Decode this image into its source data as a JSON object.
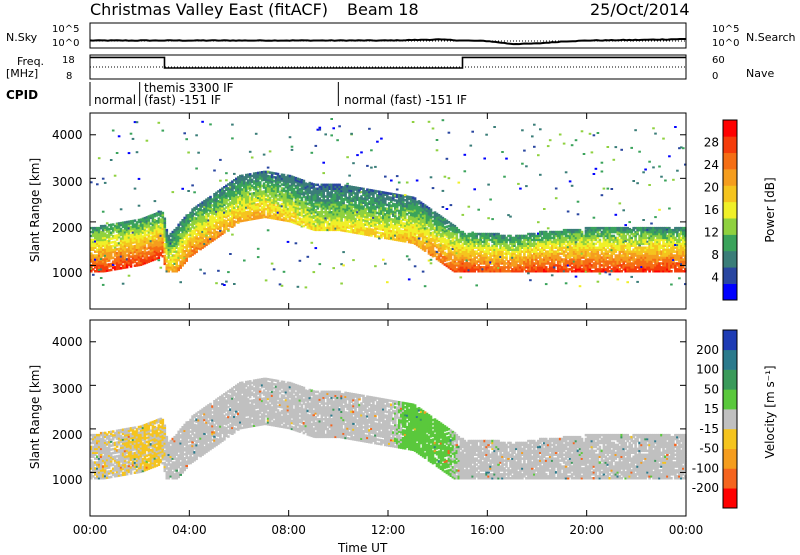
{
  "header": {
    "radar": "Christmas Valley East (fitACF)",
    "beam": "Beam 18",
    "date": "25/Oct/2014"
  },
  "noise_panel": {
    "left_label": "N.Sky",
    "left_ticks": [
      "10^5",
      "10^0"
    ],
    "right_label": "N.Search",
    "right_ticks": [
      "10^5",
      "10^0"
    ]
  },
  "freq_panel": {
    "left_label_line1": "Freq.",
    "left_label_line2": "[MHz]",
    "left_ticks": [
      "18",
      "8"
    ],
    "right_label": "Nave",
    "right_ticks": [
      "60",
      "0"
    ]
  },
  "cpid": {
    "label": "CPID",
    "segments": [
      "normal",
      "themis 3300 IF",
      "(fast) -151 IF",
      "normal (fast) -151 IF"
    ]
  },
  "power_panel": {
    "ylabel": "Slant Range [km]",
    "yticks": [
      "4000",
      "3000",
      "2000",
      "1000"
    ],
    "colorbar_label": "Power [dB]",
    "colorbar_ticks": [
      "28",
      "24",
      "20",
      "16",
      "12",
      "8",
      "4"
    ],
    "colors": [
      "#0000ff",
      "#2946a0",
      "#3a7d78",
      "#3aa35b",
      "#8fd13f",
      "#f0f028",
      "#f5c41e",
      "#f59d1e",
      "#f56e14",
      "#f53c0a",
      "#ff0000"
    ]
  },
  "velocity_panel": {
    "ylabel": "Slant Range [km]",
    "yticks": [
      "4000",
      "3000",
      "2000",
      "1000"
    ],
    "colorbar_label": "Velocity [m s⁻¹]",
    "colorbar_ticks": [
      "200",
      "100",
      "50",
      "15",
      "-15",
      "-50",
      "-100",
      "-200"
    ],
    "colors": [
      "#1e3cb4",
      "#2b7a8c",
      "#3a9a5a",
      "#5ac83c",
      "#c0c0c0",
      "#f5c41e",
      "#f59d1e",
      "#f5641e",
      "#ff0000"
    ]
  },
  "time_axis": {
    "label": "Time UT",
    "ticks": [
      "00:00",
      "04:00",
      "08:00",
      "12:00",
      "16:00",
      "20:00",
      "00:00"
    ]
  },
  "chart_data": {
    "type": "heatmap",
    "title": "Christmas Valley East (fitACF) Beam 18 25/Oct/2014",
    "xlabel": "Time UT",
    "ylabel": "Slant Range [km]",
    "xlim": [
      0,
      24
    ],
    "ylim": [
      0,
      4500
    ],
    "panels": [
      {
        "name": "Power",
        "units": "dB",
        "clim": [
          0,
          30
        ],
        "main_echo_band": {
          "time_h": [
            0,
            1,
            2,
            2.9,
            3.1,
            4,
            5,
            6,
            7,
            8,
            9,
            10,
            11,
            12,
            13,
            14,
            15,
            16,
            17,
            18,
            20,
            22,
            24
          ],
          "range_km": [
            1500,
            1600,
            1700,
            1900,
            1300,
            1900,
            2300,
            2700,
            2800,
            2700,
            2500,
            2500,
            2400,
            2300,
            2200,
            1800,
            1400,
            1400,
            1300,
            1400,
            1500,
            1500,
            1500
          ],
          "peak_power_db": [
            28,
            28,
            28,
            28,
            20,
            24,
            22,
            20,
            20,
            18,
            16,
            16,
            18,
            18,
            20,
            24,
            28,
            26,
            26,
            28,
            28,
            28,
            28
          ]
        }
      },
      {
        "name": "Velocity",
        "units": "m s^-1",
        "clim": [
          -250,
          250
        ],
        "dominant_velocity_ms": [
          -10,
          -10,
          -20,
          -20,
          0,
          0,
          0,
          0,
          0,
          0,
          0,
          0,
          0,
          0,
          40,
          40,
          0,
          0,
          0,
          0,
          0,
          0,
          0
        ]
      }
    ],
    "noise": {
      "n_sky_log": [
        1.5,
        1.5,
        1.5,
        1.5,
        1.5,
        1.5,
        1.5,
        1.5,
        1.5,
        1.5,
        1.5,
        1.5,
        1.5,
        1.6,
        1.7,
        1.5,
        1.4,
        0.8,
        0.9,
        1.3,
        1.5,
        1.6,
        1.8
      ],
      "time_h": [
        0,
        1,
        2,
        3,
        4,
        5,
        6,
        7,
        8,
        9,
        10,
        11,
        12,
        13,
        14,
        15,
        16,
        17,
        18,
        19,
        20,
        22,
        24
      ]
    },
    "frequency_mhz": {
      "time_h": [
        0,
        3.0,
        3.0,
        15.0,
        15.0,
        24
      ],
      "values": [
        12.5,
        12.5,
        10.3,
        10.3,
        12.5,
        12.5
      ]
    }
  }
}
